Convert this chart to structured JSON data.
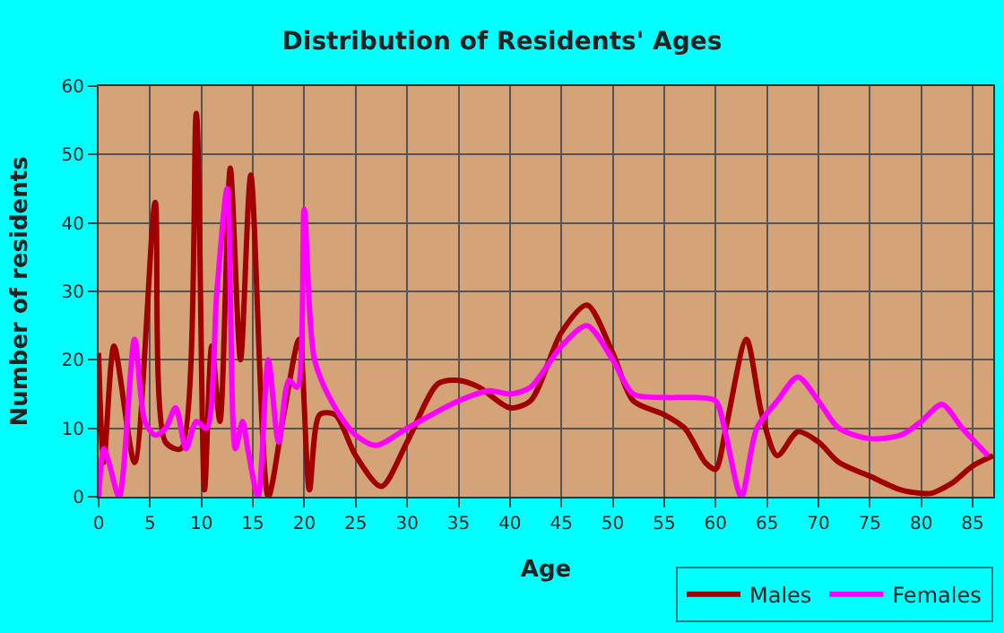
{
  "chart_data": {
    "type": "line",
    "title": "Distribution of Residents' Ages",
    "xlabel": "Age",
    "ylabel": "Number of residents",
    "xlim": [
      0,
      87
    ],
    "xticks": [
      0,
      5,
      10,
      15,
      20,
      25,
      30,
      35,
      40,
      45,
      50,
      55,
      60,
      65,
      70,
      75,
      80,
      85
    ],
    "ylim": [
      0,
      60
    ],
    "yticks": [
      0,
      10,
      20,
      30,
      40,
      50,
      60
    ],
    "grid": true,
    "legend": "bottom right",
    "marker": "none",
    "line_style": "solid",
    "series": [
      {
        "name": "Males",
        "color": "#a00000",
        "x": [
          0,
          0.5,
          1.5,
          3.5,
          5.5,
          6.5,
          8,
          9.5,
          10.3,
          11,
          11.8,
          12.8,
          13.8,
          14.8,
          16.5,
          18,
          19.5,
          20.5,
          21.5,
          23,
          25,
          27.5,
          30,
          33,
          35,
          37,
          40,
          42,
          45,
          47.5,
          50,
          52,
          55,
          57,
          59,
          60,
          61,
          63,
          64.5,
          66,
          68,
          70,
          72,
          75,
          78,
          80,
          81,
          83,
          85,
          87
        ],
        "values": [
          21,
          5,
          22,
          5,
          43,
          8,
          7,
          56,
          1,
          22,
          11,
          48,
          20,
          47,
          0,
          12,
          23,
          1,
          12,
          12,
          6,
          1.5,
          8,
          16.5,
          17,
          16,
          13,
          14,
          24,
          28,
          21,
          14,
          12,
          10,
          5,
          4,
          10,
          23,
          12,
          6,
          9.5,
          8,
          5,
          3,
          1,
          0.5,
          0.5,
          2,
          4.5,
          6
        ]
      },
      {
        "name": "Females",
        "color": "#ff00ff",
        "x": [
          0,
          0.5,
          1,
          2,
          3.5,
          4.5,
          5.5,
          6.5,
          7.5,
          8.5,
          9.5,
          10.5,
          11.5,
          12.5,
          13.3,
          14,
          14.5,
          15.5,
          16.5,
          17.5,
          18.5,
          19.3,
          20,
          21,
          23,
          25,
          27,
          30,
          35,
          38,
          40,
          42,
          45,
          47.5,
          50,
          52,
          55,
          58,
          60,
          61,
          62.5,
          64,
          66,
          68,
          70,
          72,
          75,
          78,
          80,
          82,
          84,
          86.5
        ],
        "values": [
          0,
          7,
          5,
          0,
          23,
          11,
          9,
          10,
          13,
          7,
          11,
          10,
          30,
          45,
          7,
          11,
          7,
          0,
          20,
          8,
          17,
          16,
          42,
          20,
          13,
          9,
          7.5,
          10,
          14,
          15.5,
          15,
          16,
          22,
          25,
          20,
          15,
          14.5,
          14.5,
          14,
          9,
          0,
          10,
          14,
          17.5,
          14,
          10,
          8.5,
          9,
          11,
          13.5,
          10,
          6
        ]
      }
    ]
  }
}
